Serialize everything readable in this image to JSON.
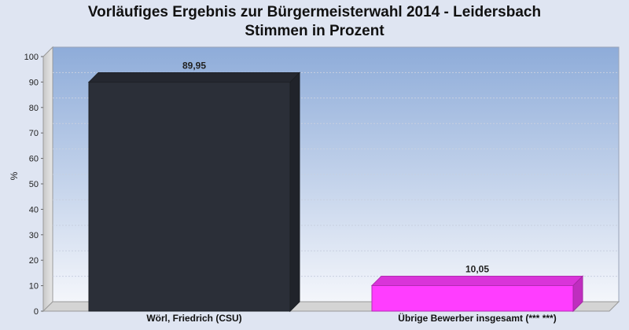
{
  "chart_data": {
    "type": "bar",
    "title": "Vorläufiges Ergebnis zur Bürgermeisterwahl 2014 - Leidersbach",
    "subtitle": "Stimmen in Prozent",
    "ylabel": "%",
    "xlabel": "",
    "ylim": [
      0,
      100
    ],
    "yticks": [
      0,
      10,
      20,
      30,
      40,
      50,
      60,
      70,
      80,
      90,
      100
    ],
    "categories": [
      "Wörl, Friedrich (CSU)",
      "Übrige Bewerber insgesamt (***  ***)"
    ],
    "values": [
      89.95,
      10.05
    ],
    "value_labels": [
      "89,95",
      "10,05"
    ],
    "colors": [
      "#2b2f38",
      "#ff3dff"
    ],
    "grid": true,
    "legend": "none"
  }
}
